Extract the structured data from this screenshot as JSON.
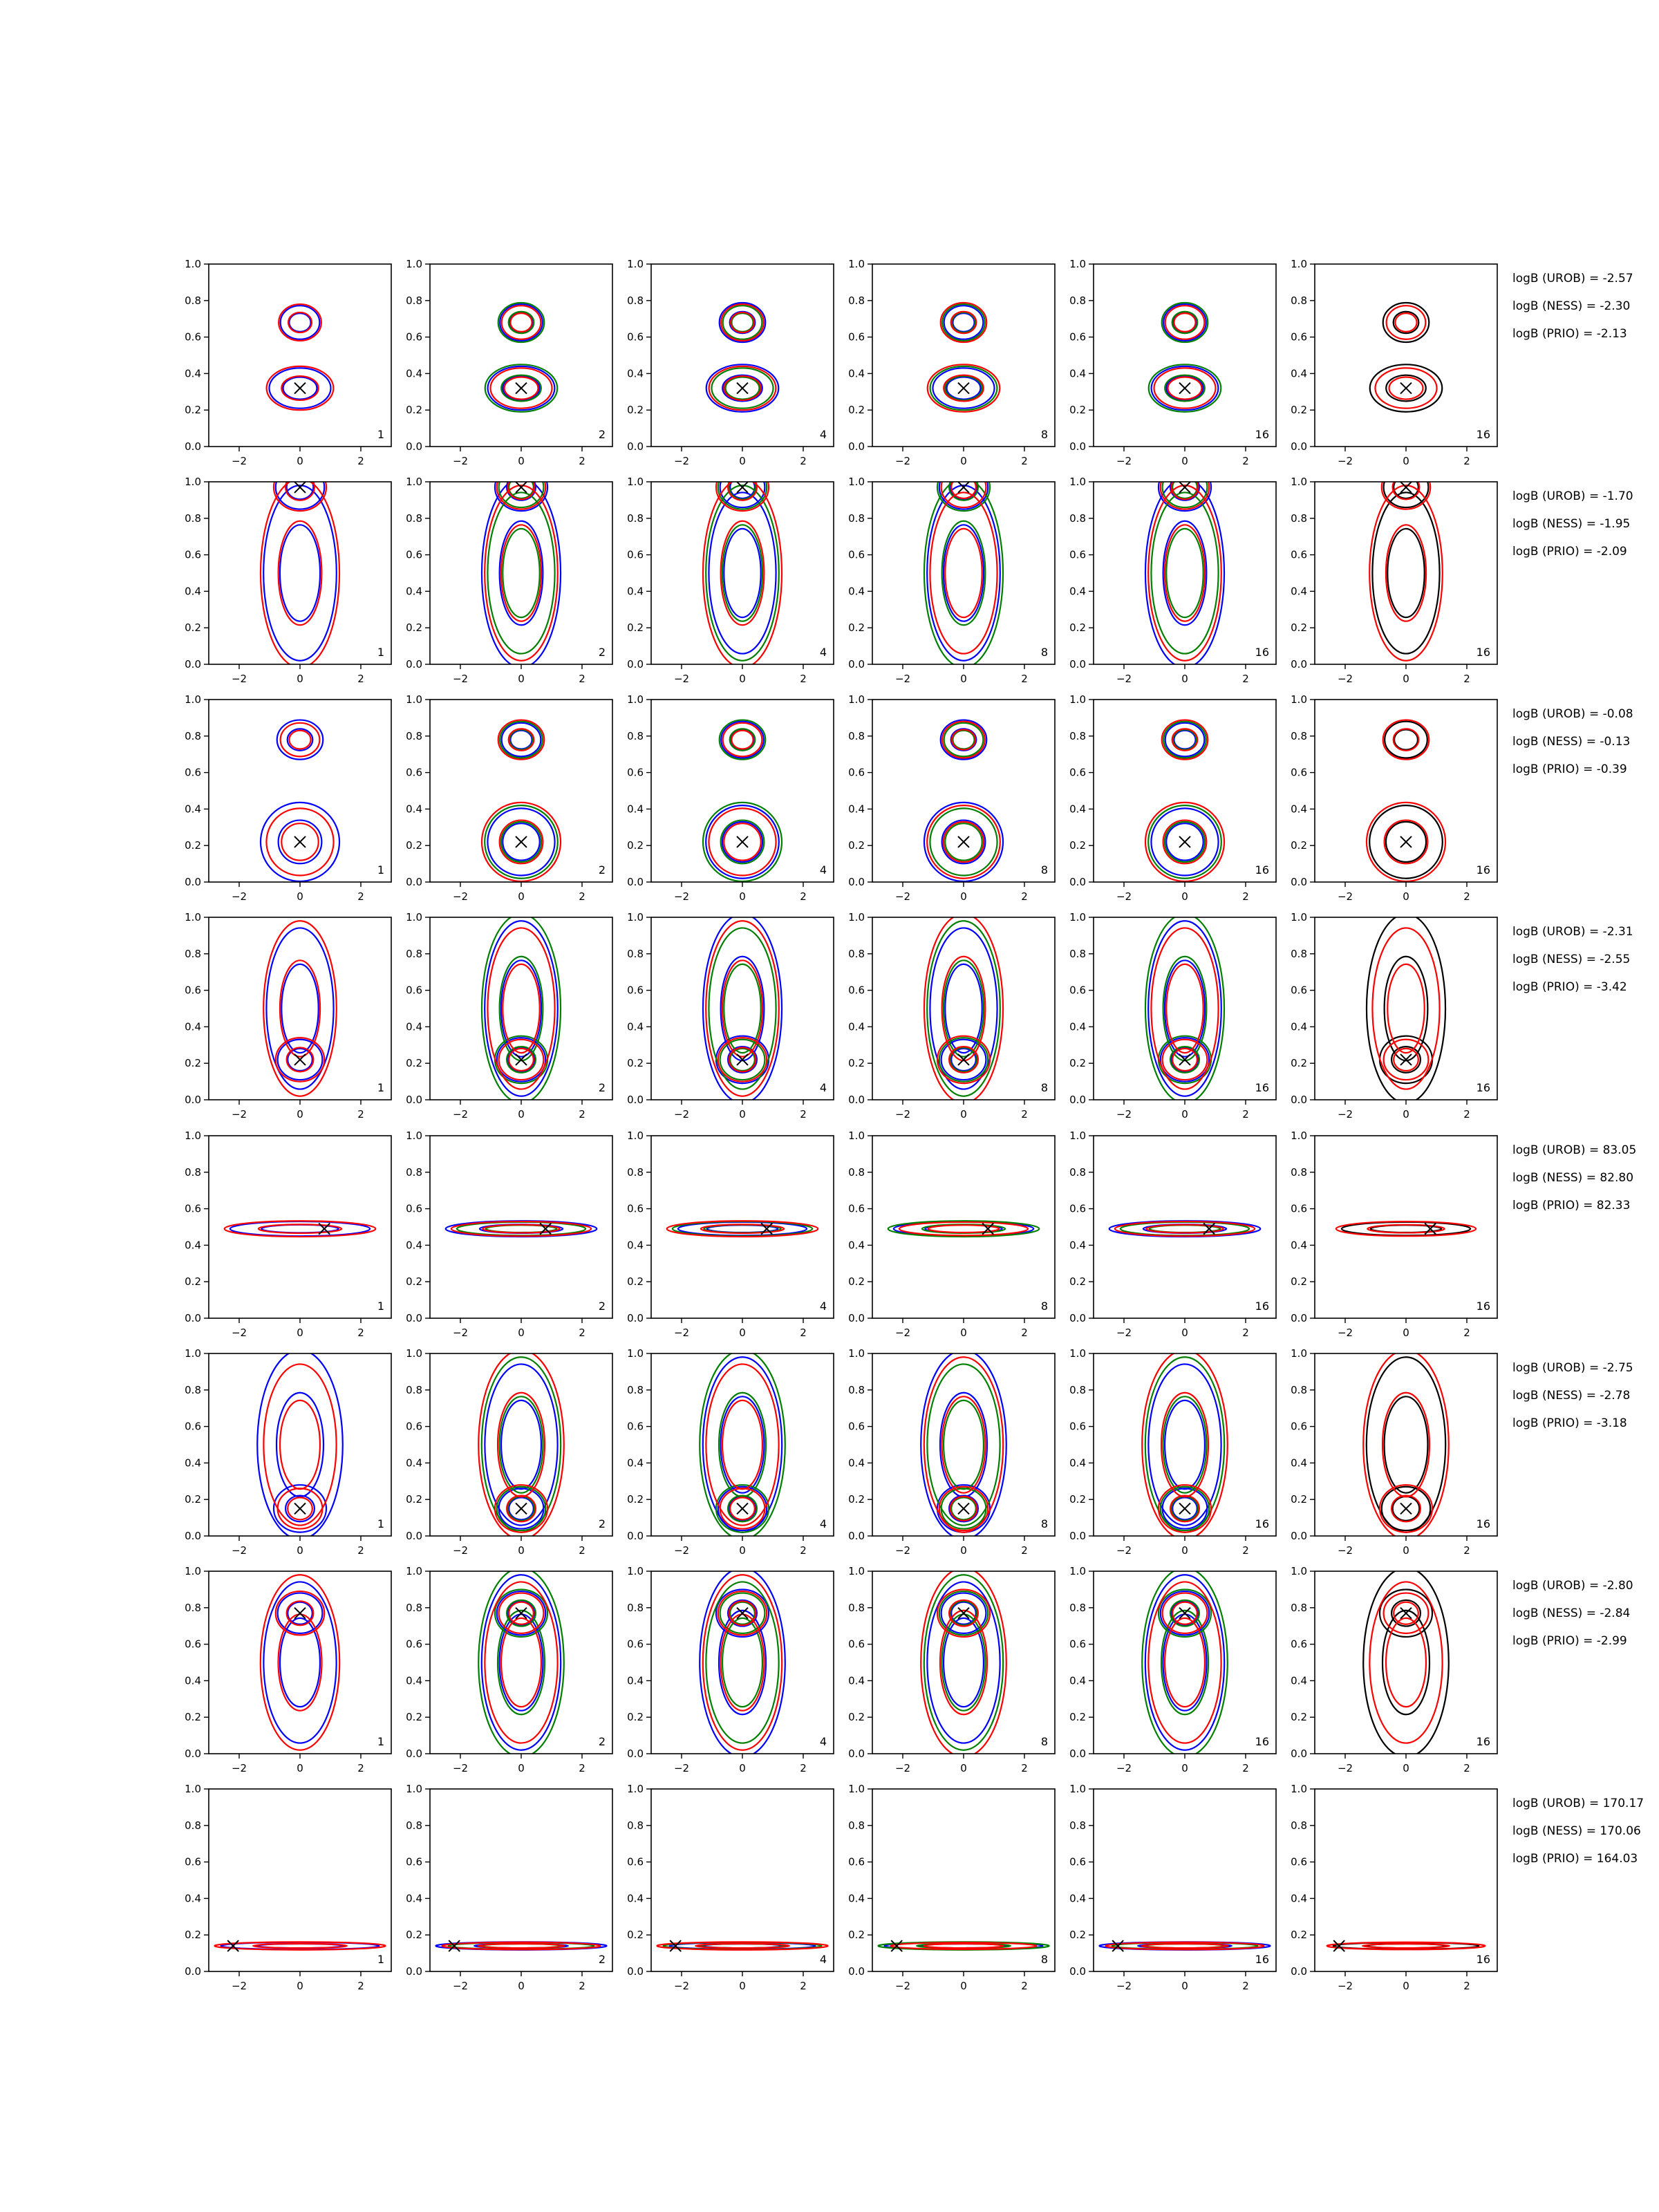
{
  "chart_data": {
    "type": "contour",
    "grid": false,
    "xlim": [
      -3,
      3
    ],
    "ylim": [
      0,
      1
    ],
    "xticks": [
      "−2",
      "0",
      "2"
    ],
    "yticks": [
      "0.0",
      "0.2",
      "0.4",
      "0.6",
      "0.8",
      "1.0"
    ],
    "colors": {
      "uneven": "#0000ff",
      "sample": "#008000",
      "ess": "#ff0000",
      "exact": "#000000",
      "marker": "#000000"
    },
    "columns": [
      {
        "label": "1",
        "palette": [
          "#0000ff",
          "#ff0000"
        ]
      },
      {
        "label": "2",
        "palette": [
          "#0000ff",
          "#008000",
          "#ff0000"
        ]
      },
      {
        "label": "4",
        "palette": [
          "#0000ff",
          "#008000",
          "#ff0000"
        ]
      },
      {
        "label": "8",
        "palette": [
          "#0000ff",
          "#008000",
          "#ff0000"
        ]
      },
      {
        "label": "16",
        "palette": [
          "#0000ff",
          "#008000",
          "#ff0000"
        ]
      },
      {
        "label": "16",
        "palette": [
          "#000000",
          "#ff0000"
        ]
      }
    ],
    "rows": [
      {
        "truth": [
          0.0,
          0.32
        ],
        "shape": "bimodal",
        "sx": 1.1,
        "sy": 0.12,
        "logB": [
          "logB (UROB) = -2.57",
          "logB (NESS) = -2.30",
          "logB (PRIO) = -2.13"
        ]
      },
      {
        "truth": [
          0.0,
          0.97
        ],
        "shape": "tall",
        "sx": 1.2,
        "sy": 0.3,
        "logB": [
          "logB (UROB) = -1.70",
          "logB (NESS) = -1.95",
          "logB (PRIO) = -2.09"
        ]
      },
      {
        "truth": [
          0.0,
          0.22
        ],
        "shape": "bimodal",
        "sx": 1.2,
        "sy": 0.2,
        "logB": [
          "logB (UROB) = -0.08",
          "logB (NESS) = -0.13",
          "logB (PRIO) = -0.39"
        ]
      },
      {
        "truth": [
          0.0,
          0.22
        ],
        "shape": "tall",
        "sx": 1.2,
        "sy": 0.3,
        "logB": [
          "logB (UROB) = -2.31",
          "logB (NESS) = -2.55",
          "logB (PRIO) = -3.42"
        ]
      },
      {
        "truth": [
          0.8,
          0.49
        ],
        "shape": "flat",
        "sx": 2.3,
        "sy": 0.04,
        "logB": [
          "logB (UROB) = 83.05",
          "logB (NESS) = 82.80",
          "logB (PRIO) = 82.33"
        ]
      },
      {
        "truth": [
          0.0,
          0.15
        ],
        "shape": "tall",
        "sx": 1.3,
        "sy": 0.3,
        "logB": [
          "logB (UROB) = -2.75",
          "logB (NESS) = -2.78",
          "logB (PRIO) = -3.18"
        ]
      },
      {
        "truth": [
          0.0,
          0.77
        ],
        "shape": "tall",
        "sx": 1.3,
        "sy": 0.3,
        "logB": [
          "logB (UROB) = -2.80",
          "logB (NESS) = -2.84",
          "logB (PRIO) = -2.99"
        ]
      },
      {
        "truth": [
          -2.2,
          0.14
        ],
        "shape": "flat",
        "sx": 2.6,
        "sy": 0.02,
        "logB": [
          "logB (UROB) = 170.17",
          "logB (NESS) = 170.06",
          "logB (PRIO) = 164.03"
        ]
      }
    ]
  }
}
